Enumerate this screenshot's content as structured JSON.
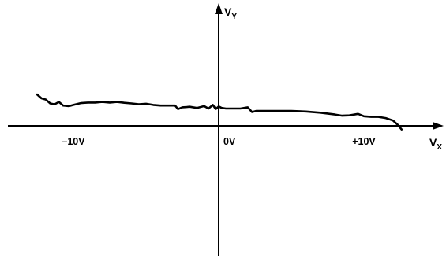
{
  "chart_data": {
    "type": "line",
    "title": "",
    "xlabel": {
      "main": "V",
      "sub": "X"
    },
    "ylabel": {
      "main": "V",
      "sub": "Y"
    },
    "xlim": [
      -12,
      12
    ],
    "ylim": [
      -4,
      4
    ],
    "grid": false,
    "legend": "none",
    "x_ticks": [
      {
        "value": -10,
        "label": "–10V"
      },
      {
        "value": 0,
        "label": "0V"
      },
      {
        "value": 10,
        "label": "+10V"
      }
    ],
    "series": [
      {
        "x": [
          -12.5,
          -12.2,
          -11.9,
          -11.6,
          -11.3,
          -11.0,
          -10.7,
          -10.3,
          -10.0,
          -9.5,
          -9.0,
          -8.5,
          -8.0,
          -7.5,
          -7.0,
          -6.5,
          -6.0,
          -5.5,
          -5.0,
          -4.5,
          -4.0,
          -3.5,
          -3.0,
          -2.8,
          -2.5,
          -2.2,
          -2.0,
          -1.5,
          -1.0,
          -0.7,
          -0.4,
          -0.2,
          0.0,
          0.2,
          0.5,
          1.0,
          1.5,
          2.0,
          2.3,
          2.6,
          3.0,
          4.0,
          5.0,
          6.0,
          7.0,
          8.0,
          8.5,
          9.0,
          9.6,
          10.0,
          10.5,
          11.0,
          11.5,
          12.0,
          12.3,
          12.6
        ],
        "y": [
          1.05,
          0.92,
          0.88,
          0.75,
          0.72,
          0.8,
          0.68,
          0.66,
          0.7,
          0.76,
          0.78,
          0.78,
          0.8,
          0.78,
          0.8,
          0.77,
          0.75,
          0.72,
          0.74,
          0.7,
          0.68,
          0.68,
          0.68,
          0.56,
          0.62,
          0.63,
          0.64,
          0.6,
          0.66,
          0.58,
          0.7,
          0.56,
          0.65,
          0.6,
          0.58,
          0.58,
          0.58,
          0.62,
          0.46,
          0.5,
          0.5,
          0.5,
          0.5,
          0.48,
          0.44,
          0.38,
          0.34,
          0.35,
          0.4,
          0.32,
          0.3,
          0.3,
          0.26,
          0.18,
          0.05,
          -0.12
        ]
      }
    ]
  }
}
